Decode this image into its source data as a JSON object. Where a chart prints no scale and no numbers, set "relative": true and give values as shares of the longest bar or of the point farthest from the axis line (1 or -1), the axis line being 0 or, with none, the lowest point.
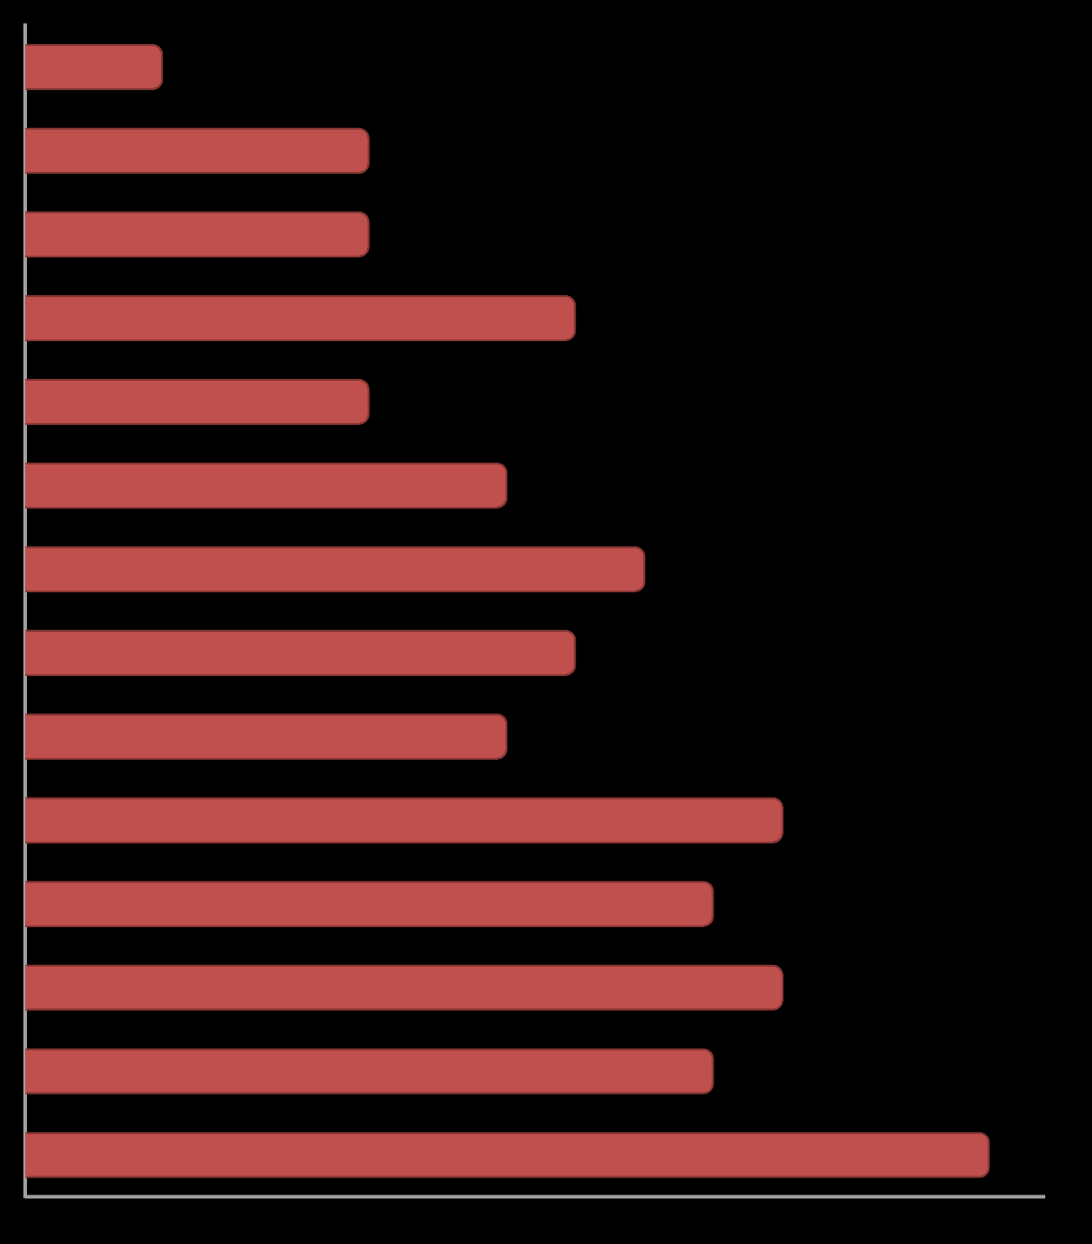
{
  "chart_data": {
    "type": "bar",
    "orientation": "horizontal",
    "relative": true,
    "legend": false,
    "categories": [
      null,
      null,
      null,
      null,
      null,
      null,
      null,
      null,
      null,
      null,
      null,
      null,
      null,
      null
    ],
    "series": [
      {
        "color": "#c0504d",
        "values": [
          0.143,
          0.357,
          0.357,
          0.571,
          0.357,
          0.5,
          0.643,
          0.571,
          0.5,
          0.786,
          0.714,
          0.786,
          0.714,
          1
        ]
      }
    ]
  }
}
